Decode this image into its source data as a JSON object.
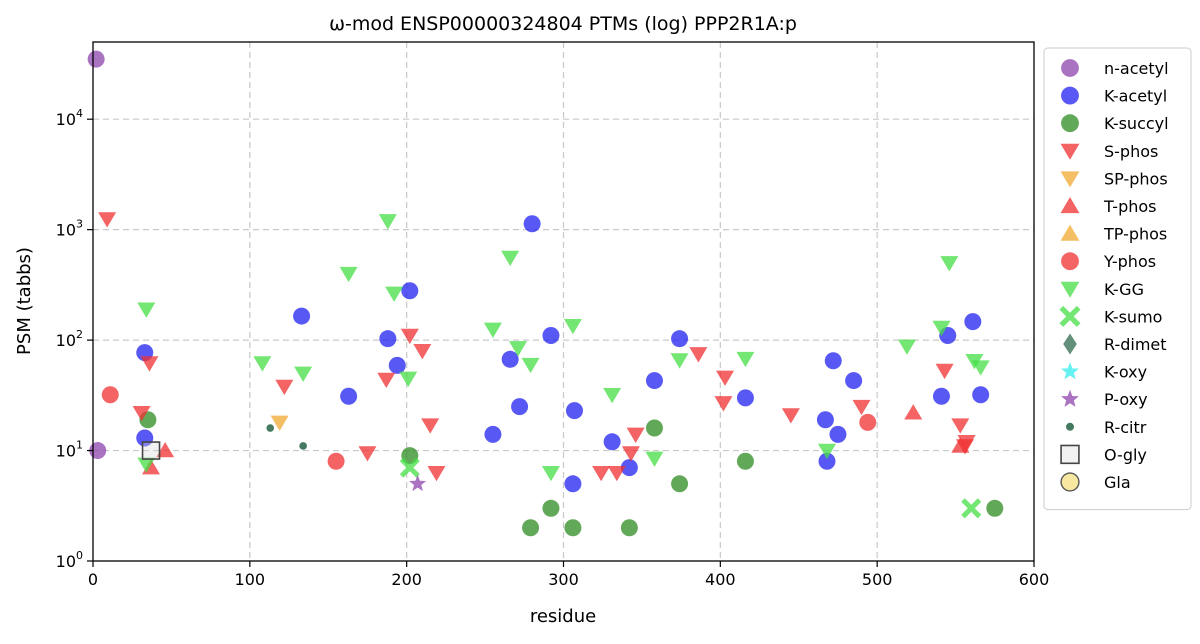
{
  "chart_data": {
    "type": "scatter",
    "title": "ω-mod ENSP00000324804 PTMs (log) PPP2R1A:p",
    "xlabel": "residue",
    "ylabel": "PSM (tabbs)",
    "xlim": [
      0,
      600
    ],
    "ylim": [
      1,
      50000
    ],
    "yscale": "log",
    "grid": true,
    "legend_position": "right",
    "x_ticks": [
      0,
      100,
      200,
      300,
      400,
      500,
      600
    ],
    "y_ticks": [
      {
        "value": 1,
        "base": "10",
        "exp": "0"
      },
      {
        "value": 10,
        "base": "10",
        "exp": "1"
      },
      {
        "value": 100,
        "base": "10",
        "exp": "2"
      },
      {
        "value": 1000,
        "base": "10",
        "exp": "3"
      },
      {
        "value": 10000,
        "base": "10",
        "exp": "4"
      }
    ],
    "series": [
      {
        "name": "n-acetyl",
        "marker": "circle",
        "color": "#8e44ad",
        "points": [
          [
            2,
            35000
          ],
          [
            3,
            10
          ]
        ]
      },
      {
        "name": "K-acetyl",
        "marker": "circle",
        "color": "#2020f0",
        "points": [
          [
            33,
            77
          ],
          [
            33,
            13
          ],
          [
            133,
            165
          ],
          [
            163,
            31
          ],
          [
            188,
            103
          ],
          [
            194,
            59
          ],
          [
            202,
            280
          ],
          [
            255,
            14
          ],
          [
            266,
            67
          ],
          [
            272,
            25
          ],
          [
            280,
            1130
          ],
          [
            292,
            110
          ],
          [
            306,
            5
          ],
          [
            307,
            23
          ],
          [
            331,
            12
          ],
          [
            342,
            7
          ],
          [
            358,
            43
          ],
          [
            374,
            103
          ],
          [
            416,
            30
          ],
          [
            467,
            19
          ],
          [
            468,
            8
          ],
          [
            472,
            65
          ],
          [
            475,
            14
          ],
          [
            485,
            43
          ],
          [
            541,
            31
          ],
          [
            545,
            110
          ],
          [
            561,
            147
          ],
          [
            566,
            32
          ]
        ]
      },
      {
        "name": "K-succyl",
        "marker": "circle",
        "color": "#2e8b22",
        "points": [
          [
            35,
            19
          ],
          [
            202,
            9
          ],
          [
            279,
            2
          ],
          [
            292,
            3
          ],
          [
            306,
            2
          ],
          [
            342,
            2
          ],
          [
            358,
            16
          ],
          [
            374,
            5
          ],
          [
            416,
            8
          ],
          [
            575,
            3
          ]
        ]
      },
      {
        "name": "S-phos",
        "marker": "tri-down",
        "color": "#f03030",
        "points": [
          [
            9,
            1250
          ],
          [
            31,
            22
          ],
          [
            36,
            62
          ],
          [
            122,
            38
          ],
          [
            175,
            9.5
          ],
          [
            187,
            44
          ],
          [
            202,
            110
          ],
          [
            210,
            80
          ],
          [
            215,
            17
          ],
          [
            219,
            6.3
          ],
          [
            324,
            6.3
          ],
          [
            334,
            6.3
          ],
          [
            343,
            9.5
          ],
          [
            346,
            14
          ],
          [
            386,
            75
          ],
          [
            402,
            27
          ],
          [
            403,
            46
          ],
          [
            445,
            21
          ],
          [
            490,
            25
          ],
          [
            543,
            53
          ],
          [
            553,
            17
          ],
          [
            556,
            11
          ],
          [
            557,
            12
          ]
        ]
      },
      {
        "name": "SP-phos",
        "marker": "tri-down",
        "color": "#f0a830",
        "points": [
          [
            119,
            18
          ]
        ]
      },
      {
        "name": "T-phos",
        "marker": "tri-up",
        "color": "#f03030",
        "points": [
          [
            37,
            7
          ],
          [
            46,
            10
          ],
          [
            523,
            22
          ],
          [
            553,
            11
          ]
        ]
      },
      {
        "name": "TP-phos",
        "marker": "tri-up",
        "color": "#f0a830",
        "points": []
      },
      {
        "name": "Y-phos",
        "marker": "circle",
        "color": "#f03030",
        "points": [
          [
            11,
            32
          ],
          [
            155,
            8
          ],
          [
            494,
            18
          ]
        ]
      },
      {
        "name": "K-GG",
        "marker": "tri-down",
        "color": "#44dd44",
        "points": [
          [
            34,
            190
          ],
          [
            34,
            7.5
          ],
          [
            108,
            62
          ],
          [
            134,
            50
          ],
          [
            163,
            400
          ],
          [
            188,
            1200
          ],
          [
            192,
            265
          ],
          [
            201,
            45
          ],
          [
            255,
            125
          ],
          [
            266,
            560
          ],
          [
            271,
            85
          ],
          [
            279,
            60
          ],
          [
            292,
            6.3
          ],
          [
            306,
            135
          ],
          [
            331,
            32
          ],
          [
            358,
            8.5
          ],
          [
            374,
            66
          ],
          [
            416,
            68
          ],
          [
            468,
            10
          ],
          [
            519,
            88
          ],
          [
            541,
            130
          ],
          [
            546,
            500
          ],
          [
            562,
            65
          ],
          [
            566,
            57
          ]
        ]
      },
      {
        "name": "K-sumo",
        "marker": "x",
        "color": "#44dd44",
        "points": [
          [
            202,
            7
          ],
          [
            560,
            3
          ]
        ]
      },
      {
        "name": "R-dimet",
        "marker": "diamond",
        "color": "#2f6b4f",
        "points": []
      },
      {
        "name": "K-oxy",
        "marker": "star",
        "color": "#33eeee",
        "points": []
      },
      {
        "name": "P-oxy",
        "marker": "star",
        "color": "#8e44ad",
        "points": [
          [
            207,
            5
          ]
        ]
      },
      {
        "name": "R-citr",
        "marker": "dot",
        "color": "#2f6b4f",
        "points": [
          [
            113,
            16
          ],
          [
            134,
            11
          ]
        ]
      },
      {
        "name": "O-gly",
        "marker": "square",
        "color": "#444444",
        "points": [
          [
            37,
            10
          ]
        ]
      },
      {
        "name": "Gla",
        "marker": "circle-open",
        "color": "#b8860b",
        "points": []
      }
    ]
  }
}
